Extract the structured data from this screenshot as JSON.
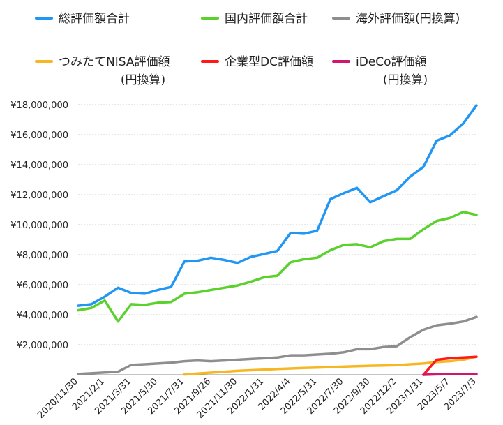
{
  "chart_data": {
    "type": "line",
    "title": "",
    "xlabel": "",
    "ylabel": "",
    "ylim": [
      0,
      18000000
    ],
    "yticks": [
      "¥2,000,000",
      "¥4,000,000",
      "¥6,000,000",
      "¥8,000,000",
      "¥10,000,000",
      "¥12,000,000",
      "¥14,000,000",
      "¥16,000,000",
      "¥18,000,000"
    ],
    "ytick_values": [
      2000000,
      4000000,
      6000000,
      8000000,
      10000000,
      12000000,
      14000000,
      16000000,
      18000000
    ],
    "xticks": [
      "2020/11/30",
      "2021/2/1",
      "2021/3/31",
      "2021/5/30",
      "2021/7/31",
      "2021/9/26",
      "2021/11/30",
      "2022/1/31",
      "2022/4/4",
      "2022/5/31",
      "2022/7/30",
      "2022/9/30",
      "2022/12/2",
      "2023/1/31",
      "2023/5/7",
      "2023/7/3"
    ],
    "x_count": 46,
    "legend_position": "top",
    "grid": true,
    "series": [
      {
        "name": "総評価額合計",
        "color": "#2196f3",
        "start_index": 0,
        "values": [
          4600000,
          4700000,
          5200000,
          5800000,
          5450000,
          5400000,
          5650000,
          5850000,
          7550000,
          7600000,
          7800000,
          7650000,
          7450000,
          7850000,
          8050000,
          8250000,
          9450000,
          9400000,
          9600000,
          11700000,
          12100000,
          12450000,
          11500000,
          11900000,
          12300000,
          13200000,
          13850000,
          15600000,
          15950000,
          16750000,
          17950000
        ]
      },
      {
        "name": "国内評価額合計",
        "color": "#5bd12d",
        "start_index": 0,
        "values": [
          4300000,
          4450000,
          4950000,
          3550000,
          4700000,
          4650000,
          4800000,
          4850000,
          5400000,
          5500000,
          5650000,
          5800000,
          5950000,
          6200000,
          6500000,
          6600000,
          7500000,
          7700000,
          7800000,
          8300000,
          8650000,
          8700000,
          8500000,
          8900000,
          9050000,
          9050000,
          9700000,
          10250000,
          10450000,
          10850000,
          10650000
        ]
      },
      {
        "name": "海外評価額(円換算)",
        "color": "#8e8e8e",
        "start_index": 0,
        "values": [
          50000,
          100000,
          150000,
          200000,
          650000,
          700000,
          750000,
          800000,
          900000,
          950000,
          900000,
          950000,
          1000000,
          1050000,
          1100000,
          1150000,
          1300000,
          1300000,
          1350000,
          1400000,
          1500000,
          1700000,
          1700000,
          1850000,
          1900000,
          2500000,
          3000000,
          3300000,
          3400000,
          3550000,
          3850000
        ]
      },
      {
        "name": "つみたてNISA評価額(円換算)",
        "color": "#f6b722",
        "start_index": 8,
        "values": [
          20000,
          80000,
          140000,
          200000,
          260000,
          300000,
          340000,
          380000,
          420000,
          450000,
          480000,
          510000,
          540000,
          570000,
          600000,
          620000,
          640000,
          700000,
          750000,
          850000,
          900000,
          1000000,
          1200000
        ]
      },
      {
        "name": "企業型DC評価額",
        "color": "#ff1a1a",
        "start_index": 26,
        "values": [
          0,
          1000000,
          1100000,
          1150000,
          1200000
        ]
      },
      {
        "name": "iDeCo評価額(円換算)",
        "color": "#d0166e",
        "start_index": 26,
        "values": [
          0,
          30000,
          40000,
          45000,
          50000
        ]
      }
    ]
  }
}
